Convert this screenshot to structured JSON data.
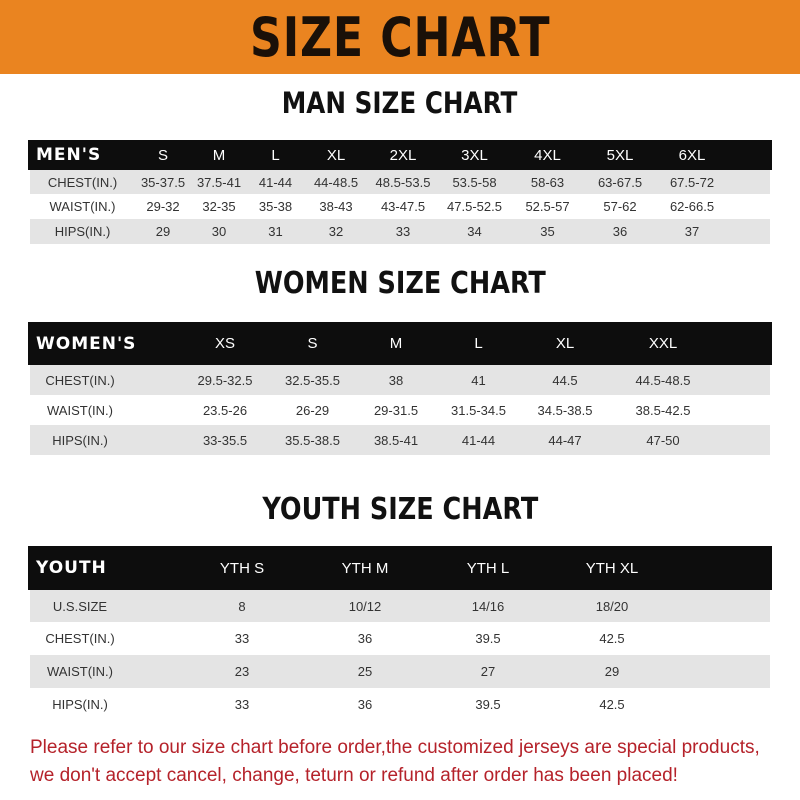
{
  "banner": {
    "title": "SIZE CHART",
    "color": "#ea8420"
  },
  "men": {
    "title": "MAN SIZE CHART",
    "header": [
      "MEN'S",
      "S",
      "M",
      "L",
      "XL",
      "2XL",
      "3XL",
      "4XL",
      "5XL",
      "6XL"
    ],
    "rows": [
      [
        "CHEST(IN.)",
        "35-37.5",
        "37.5-41",
        "41-44",
        "44-48.5",
        "48.5-53.5",
        "53.5-58",
        "58-63",
        "63-67.5",
        "67.5-72"
      ],
      [
        "WAIST(IN.)",
        "29-32",
        "32-35",
        "35-38",
        "38-43",
        "43-47.5",
        "47.5-52.5",
        "52.5-57",
        "57-62",
        "62-66.5"
      ],
      [
        "HIPS(IN.)",
        "29",
        "30",
        "31",
        "32",
        "33",
        "34",
        "35",
        "36",
        "37"
      ]
    ]
  },
  "women": {
    "title": "WOMEN SIZE CHART",
    "header": [
      "WOMEN'S",
      "XS",
      "S",
      "M",
      "L",
      "XL",
      "XXL"
    ],
    "rows": [
      [
        "CHEST(IN.)",
        "29.5-32.5",
        "32.5-35.5",
        "38",
        "41",
        "44.5",
        "44.5-48.5"
      ],
      [
        "WAIST(IN.)",
        "23.5-26",
        "26-29",
        "29-31.5",
        "31.5-34.5",
        "34.5-38.5",
        "38.5-42.5"
      ],
      [
        "HIPS(IN.)",
        "33-35.5",
        "35.5-38.5",
        "38.5-41",
        "41-44",
        "44-47",
        "47-50"
      ]
    ]
  },
  "youth": {
    "title": "YOUTH SIZE CHART",
    "header": [
      "YOUTH",
      "YTH S",
      "YTH M",
      "YTH L",
      "YTH XL"
    ],
    "rows": [
      [
        "U.S.SIZE",
        "8",
        "10/12",
        "14/16",
        "18/20"
      ],
      [
        "CHEST(IN.)",
        "33",
        "36",
        "39.5",
        "42.5"
      ],
      [
        "WAIST(IN.)",
        "23",
        "25",
        "27",
        "29"
      ],
      [
        "HIPS(IN.)",
        "33",
        "36",
        "39.5",
        "42.5"
      ]
    ]
  },
  "notice": {
    "line1": "Please refer to our size chart before order,the customized jerseys are special products,",
    "line2": "we don't accept cancel, change, teturn or refund after order has been placed!",
    "color": "#b5222a"
  }
}
